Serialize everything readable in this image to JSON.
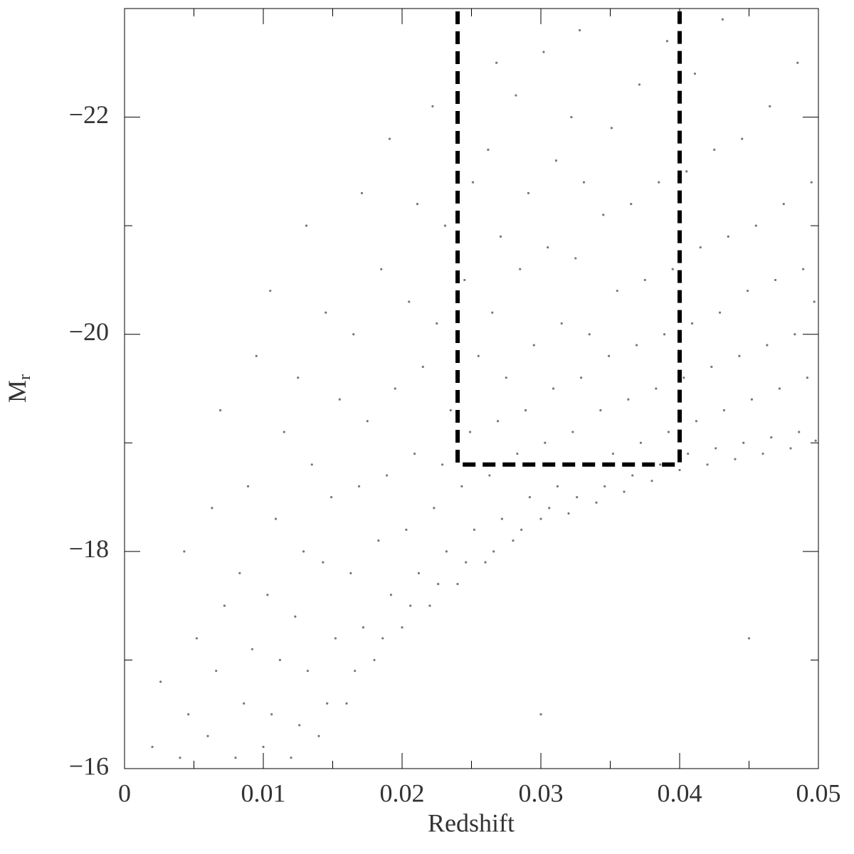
{
  "chart_data": {
    "type": "scatter",
    "xlabel": "Redshift",
    "ylabel": {
      "text": "M",
      "subscript": "r"
    },
    "xlim": [
      0,
      0.05
    ],
    "ylim": [
      -16,
      -23
    ],
    "xticks": [
      0,
      0.01,
      0.02,
      0.03,
      0.04,
      0.05
    ],
    "xminorticks": [
      0.005,
      0.015,
      0.025,
      0.035,
      0.045
    ],
    "yticks": [
      {
        "value": -16,
        "label": "−16"
      },
      {
        "value": -18,
        "label": "−18"
      },
      {
        "value": -20,
        "label": "−20"
      },
      {
        "value": -22,
        "label": "−22"
      }
    ],
    "yminorticks": [
      -17,
      -19,
      -21
    ],
    "color": "#777777",
    "selection": {
      "x0": 0.024,
      "x1": 0.04,
      "y0": -18.8,
      "color": "#000000"
    },
    "x": [
      0.002,
      0.0026,
      0.004,
      0.0046,
      0.0052,
      0.0043,
      0.006,
      0.0066,
      0.0072,
      0.0063,
      0.0069,
      0.008,
      0.0086,
      0.0092,
      0.0083,
      0.0089,
      0.0095,
      0.01,
      0.0106,
      0.0112,
      0.0103,
      0.0109,
      0.0115,
      0.0105,
      0.012,
      0.0126,
      0.0132,
      0.0123,
      0.0129,
      0.0135,
      0.0125,
      0.0131,
      0.014,
      0.0146,
      0.0152,
      0.0143,
      0.0149,
      0.0155,
      0.0145,
      0.016,
      0.0166,
      0.0172,
      0.0163,
      0.0169,
      0.0175,
      0.0165,
      0.0171,
      0.018,
      0.0186,
      0.0192,
      0.0183,
      0.0189,
      0.0195,
      0.0185,
      0.0191,
      0.02,
      0.0206,
      0.0212,
      0.0203,
      0.0209,
      0.0215,
      0.0205,
      0.0211,
      0.022,
      0.0226,
      0.0232,
      0.0223,
      0.0229,
      0.0235,
      0.0225,
      0.0231,
      0.0222,
      0.024,
      0.0246,
      0.0252,
      0.0243,
      0.0249,
      0.0255,
      0.0245,
      0.0251,
      0.026,
      0.0266,
      0.0272,
      0.0263,
      0.0269,
      0.0275,
      0.0265,
      0.0271,
      0.0262,
      0.0268,
      0.028,
      0.0286,
      0.0292,
      0.0283,
      0.0289,
      0.0295,
      0.0285,
      0.0291,
      0.0282,
      0.03,
      0.0306,
      0.0312,
      0.0303,
      0.0309,
      0.0315,
      0.0305,
      0.0311,
      0.0302,
      0.032,
      0.0326,
      0.0332,
      0.0323,
      0.0329,
      0.0335,
      0.0325,
      0.0331,
      0.0322,
      0.0328,
      0.034,
      0.0346,
      0.0352,
      0.0343,
      0.0349,
      0.0355,
      0.0345,
      0.0351,
      0.036,
      0.0366,
      0.0372,
      0.0363,
      0.0369,
      0.0375,
      0.0365,
      0.0371,
      0.038,
      0.0386,
      0.0392,
      0.0383,
      0.0389,
      0.0395,
      0.0385,
      0.0391,
      0.04,
      0.0406,
      0.0412,
      0.0403,
      0.0409,
      0.0415,
      0.0405,
      0.0411,
      0.042,
      0.0426,
      0.0432,
      0.0423,
      0.0429,
      0.0435,
      0.0425,
      0.0431,
      0.044,
      0.0446,
      0.0452,
      0.0443,
      0.0449,
      0.0455,
      0.0445,
      0.046,
      0.0466,
      0.0472,
      0.0463,
      0.0469,
      0.0475,
      0.0465,
      0.048,
      0.0486,
      0.0492,
      0.0483,
      0.0489,
      0.0495,
      0.0485,
      0.0498,
      0.0497,
      0.03,
      0.045
    ],
    "values": [
      -16.2,
      -16.8,
      -16.1,
      -16.5,
      -17.2,
      -18.0,
      -16.3,
      -16.9,
      -17.5,
      -18.4,
      -19.3,
      -16.1,
      -16.6,
      -17.1,
      -17.8,
      -18.6,
      -19.8,
      -16.2,
      -16.5,
      -17.0,
      -17.6,
      -18.3,
      -19.1,
      -20.4,
      -16.1,
      -16.4,
      -16.9,
      -17.4,
      -18.0,
      -18.8,
      -19.6,
      -21.0,
      -16.3,
      -16.6,
      -17.2,
      -17.9,
      -18.5,
      -19.4,
      -20.2,
      -16.6,
      -16.9,
      -17.3,
      -17.8,
      -18.6,
      -19.2,
      -20.0,
      -21.3,
      -17.0,
      -17.2,
      -17.6,
      -18.1,
      -18.7,
      -19.5,
      -20.6,
      -21.8,
      -17.3,
      -17.5,
      -17.8,
      -18.2,
      -18.9,
      -19.7,
      -20.3,
      -21.2,
      -17.5,
      -17.7,
      -18.0,
      -18.4,
      -18.8,
      -19.3,
      -20.1,
      -21.0,
      -22.1,
      -17.7,
      -17.9,
      -18.2,
      -18.6,
      -19.1,
      -19.8,
      -20.5,
      -21.4,
      -17.9,
      -18.0,
      -18.3,
      -18.7,
      -19.2,
      -19.6,
      -20.2,
      -20.9,
      -21.7,
      -22.5,
      -18.1,
      -18.2,
      -18.5,
      -18.9,
      -19.3,
      -19.9,
      -20.6,
      -21.3,
      -22.2,
      -18.3,
      -18.4,
      -18.6,
      -19.0,
      -19.5,
      -20.1,
      -20.8,
      -21.6,
      -22.6,
      -18.35,
      -18.5,
      -18.8,
      -19.1,
      -19.6,
      -20.0,
      -20.7,
      -21.4,
      -22.0,
      -22.8,
      -18.45,
      -18.6,
      -18.9,
      -19.3,
      -19.8,
      -20.4,
      -21.1,
      -21.9,
      -18.55,
      -18.7,
      -19.0,
      -19.4,
      -19.9,
      -20.5,
      -21.2,
      -22.3,
      -18.65,
      -18.8,
      -19.1,
      -19.5,
      -20.0,
      -20.6,
      -21.4,
      -22.7,
      -18.75,
      -18.9,
      -19.2,
      -19.6,
      -20.1,
      -20.8,
      -21.5,
      -22.4,
      -18.8,
      -18.95,
      -19.3,
      -19.7,
      -20.2,
      -20.9,
      -21.7,
      -22.9,
      -18.85,
      -19.0,
      -19.4,
      -19.8,
      -20.4,
      -21.0,
      -21.8,
      -18.9,
      -19.05,
      -19.5,
      -19.9,
      -20.5,
      -21.2,
      -22.1,
      -18.95,
      -19.1,
      -19.6,
      -20.0,
      -20.6,
      -21.4,
      -22.5,
      -19.02,
      -20.3,
      -16.5,
      -17.2
    ]
  }
}
